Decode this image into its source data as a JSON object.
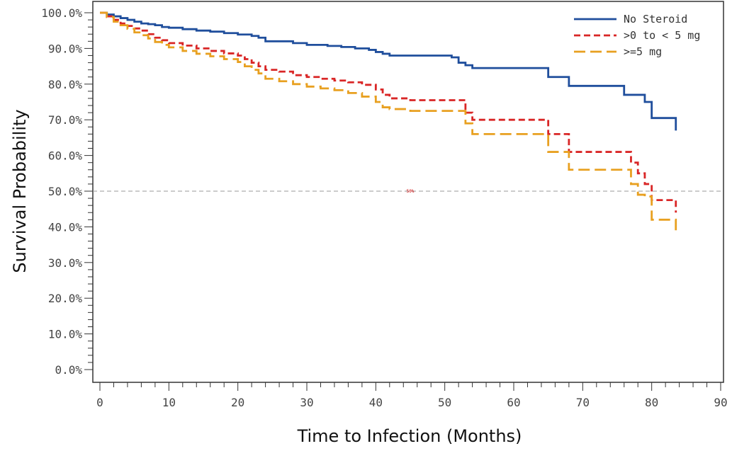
{
  "chart_data": {
    "type": "line",
    "subtype": "kaplan-meier-step",
    "xlabel": "Time to Infection (Months)",
    "ylabel": "Survival Probability",
    "xlim": [
      0,
      90
    ],
    "ylim": [
      0,
      100
    ],
    "x_ticks": [
      0,
      10,
      20,
      30,
      40,
      50,
      60,
      70,
      80,
      90
    ],
    "y_ticks": [
      0,
      10,
      20,
      30,
      40,
      50,
      60,
      70,
      80,
      90,
      100
    ],
    "y_tick_labels": [
      "0.0%",
      "10.0%",
      "20.0%",
      "30.0%",
      "40.0%",
      "50.0%",
      "60.0%",
      "70.0%",
      "80.0%",
      "90.0%",
      "100.0%"
    ],
    "grid": false,
    "legend_position": "top-right",
    "reference_line": {
      "y": 50,
      "label": "50%",
      "label_x": 45,
      "color": "#999999"
    },
    "series": [
      {
        "name": "No Steroid",
        "color": "#1f4e9c",
        "dash": "solid",
        "points": [
          [
            0,
            100
          ],
          [
            1,
            99.5
          ],
          [
            2,
            99
          ],
          [
            3,
            98.5
          ],
          [
            4,
            98
          ],
          [
            5,
            97.5
          ],
          [
            6,
            97
          ],
          [
            7,
            96.8
          ],
          [
            8,
            96.5
          ],
          [
            9,
            96
          ],
          [
            10,
            95.8
          ],
          [
            12,
            95.4
          ],
          [
            14,
            95
          ],
          [
            16,
            94.7
          ],
          [
            18,
            94.3
          ],
          [
            20,
            93.9
          ],
          [
            22,
            93.5
          ],
          [
            23,
            93
          ],
          [
            24,
            92
          ],
          [
            28,
            91.5
          ],
          [
            30,
            91
          ],
          [
            33,
            90.7
          ],
          [
            35,
            90.4
          ],
          [
            37,
            90
          ],
          [
            39,
            89.6
          ],
          [
            40,
            89
          ],
          [
            41,
            88.5
          ],
          [
            42,
            88
          ],
          [
            51,
            87.5
          ],
          [
            52,
            86
          ],
          [
            53,
            85.3
          ],
          [
            54,
            84.5
          ],
          [
            64,
            84.5
          ],
          [
            65,
            82
          ],
          [
            67,
            82
          ],
          [
            68,
            79.5
          ],
          [
            75,
            79.5
          ],
          [
            76,
            77
          ],
          [
            78,
            77
          ],
          [
            79,
            75
          ],
          [
            80,
            70.5
          ],
          [
            83.5,
            70.5
          ],
          [
            83.5,
            67
          ]
        ]
      },
      {
        "name": ">0 to < 5 mg",
        "color": "#d92626",
        "dash": "dashed",
        "points": [
          [
            0,
            100
          ],
          [
            1,
            99
          ],
          [
            2,
            98
          ],
          [
            3,
            97
          ],
          [
            4,
            96.3
          ],
          [
            5,
            95.6
          ],
          [
            6,
            95
          ],
          [
            7,
            94
          ],
          [
            8,
            93
          ],
          [
            9,
            92.3
          ],
          [
            10,
            91.5
          ],
          [
            12,
            90.8
          ],
          [
            14,
            90
          ],
          [
            16,
            89.3
          ],
          [
            18,
            88.6
          ],
          [
            20,
            88
          ],
          [
            21,
            87
          ],
          [
            22,
            86
          ],
          [
            23,
            85
          ],
          [
            24,
            84
          ],
          [
            26,
            83.5
          ],
          [
            28,
            82.5
          ],
          [
            30,
            82
          ],
          [
            32,
            81.5
          ],
          [
            34,
            81
          ],
          [
            36,
            80.5
          ],
          [
            38,
            79.8
          ],
          [
            40,
            78.5
          ],
          [
            41,
            77
          ],
          [
            42,
            76
          ],
          [
            45,
            75.5
          ],
          [
            52,
            75.5
          ],
          [
            53,
            72
          ],
          [
            54,
            70
          ],
          [
            64,
            70
          ],
          [
            65,
            66
          ],
          [
            67,
            66
          ],
          [
            68,
            61
          ],
          [
            76,
            61
          ],
          [
            77,
            58
          ],
          [
            78,
            55
          ],
          [
            79,
            52
          ],
          [
            80,
            47.5
          ],
          [
            83.5,
            47.5
          ],
          [
            83.5,
            44
          ]
        ]
      },
      {
        "name": ">=5 mg",
        "color": "#e8a020",
        "dash": "longdash",
        "points": [
          [
            0,
            100
          ],
          [
            1,
            98.8
          ],
          [
            2,
            97.5
          ],
          [
            3,
            96.5
          ],
          [
            4,
            95.5
          ],
          [
            5,
            94.5
          ],
          [
            6,
            93.7
          ],
          [
            7,
            92.8
          ],
          [
            8,
            91.8
          ],
          [
            9,
            91
          ],
          [
            10,
            90.3
          ],
          [
            12,
            89.3
          ],
          [
            14,
            88.5
          ],
          [
            16,
            87.8
          ],
          [
            18,
            87
          ],
          [
            20,
            86.2
          ],
          [
            21,
            85
          ],
          [
            22,
            84
          ],
          [
            23,
            83
          ],
          [
            24,
            81.5
          ],
          [
            26,
            80.8
          ],
          [
            28,
            80
          ],
          [
            30,
            79.3
          ],
          [
            32,
            78.8
          ],
          [
            34,
            78.3
          ],
          [
            36,
            77.5
          ],
          [
            38,
            76.5
          ],
          [
            40,
            75
          ],
          [
            41,
            73.5
          ],
          [
            42,
            73
          ],
          [
            45,
            72.5
          ],
          [
            52,
            72.5
          ],
          [
            53,
            69
          ],
          [
            54,
            66
          ],
          [
            64,
            66
          ],
          [
            65,
            61
          ],
          [
            67,
            61
          ],
          [
            68,
            56
          ],
          [
            76,
            56
          ],
          [
            77,
            52
          ],
          [
            78,
            49
          ],
          [
            79,
            48.5
          ],
          [
            80,
            42
          ],
          [
            83.5,
            42
          ],
          [
            83.5,
            39
          ]
        ]
      }
    ]
  }
}
